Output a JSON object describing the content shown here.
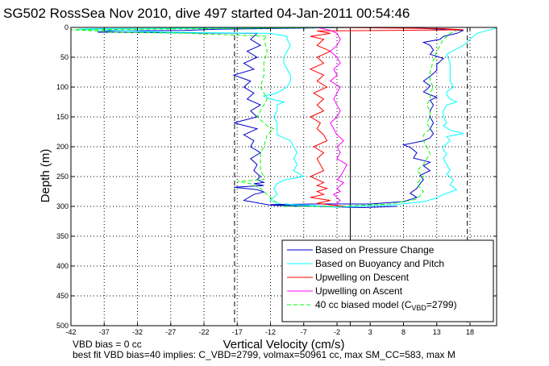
{
  "chart_data": {
    "type": "line",
    "title": "SG502 RossSea Nov 2010, dive 497 started 04-Jan-2011 00:54:46",
    "xlabel": "Vertical Velocity (cm/s)",
    "ylabel": "Depth (m)",
    "xlim": [
      -42,
      22
    ],
    "ylim": [
      0,
      500
    ],
    "y_reversed": true,
    "grid": true,
    "xticks": [
      -42,
      -37,
      -32,
      -27,
      -22,
      -17,
      -12,
      -7,
      -2,
      3,
      8,
      13,
      18
    ],
    "xtick_labels": [
      "-42",
      "-37",
      "-32",
      "-27",
      "-22",
      "-17",
      "-12",
      "-7",
      "-2",
      "3",
      "8",
      "13",
      "18"
    ],
    "yticks": [
      0,
      50,
      100,
      150,
      200,
      250,
      300,
      350,
      400,
      450,
      500
    ],
    "ytick_labels": [
      "0",
      "50",
      "100",
      "150",
      "200",
      "250",
      "300",
      "350",
      "400",
      "450",
      "500"
    ],
    "legend": {
      "placement": "bottom-right",
      "entries": [
        {
          "label": "Based on Pressure Change",
          "color": "#0000cc",
          "style": "solid"
        },
        {
          "label": "Based on Buoyancy and Pitch",
          "color": "#00ffff",
          "style": "solid"
        },
        {
          "label": "Upwelling on Descent",
          "color": "#ff0000",
          "style": "solid"
        },
        {
          "label": "Upwelling on Ascent",
          "color": "#ff00ff",
          "style": "solid"
        },
        {
          "label": "40 cc biased model (C",
          "label_sub": "VBD",
          "label_tail": "=2799)",
          "color": "#00ff00",
          "style": "dashed"
        }
      ]
    },
    "reference_lines": [
      {
        "x": 0,
        "style": "solid",
        "color": "#000000"
      },
      {
        "x": -17.4,
        "style": "dashed",
        "color": "#000000"
      },
      {
        "x": 17.6,
        "style": "dashed",
        "color": "#000000"
      }
    ],
    "series": [
      {
        "name": "Based on Pressure Change (descent)",
        "color": "#0000cc",
        "style": "solid",
        "x": [
          0,
          -20,
          -25,
          -36,
          -38,
          -14,
          -15,
          -13.5,
          -15.5,
          -14,
          -16,
          -14.5,
          -17.5,
          -15,
          -16,
          -14.5,
          -15.5,
          -13.5,
          -15,
          -14,
          -17.5,
          -14,
          -16,
          -14.5,
          -15,
          -13.5,
          -15,
          -14,
          -14.5,
          -13.5,
          -14,
          -13,
          -14.5,
          -13,
          -17.5,
          -14,
          -13,
          -14.5,
          -16,
          -12,
          -8
        ],
        "y": [
          0,
          3,
          5,
          6,
          8,
          10,
          20,
          30,
          40,
          50,
          60,
          70,
          80,
          90,
          100,
          110,
          120,
          130,
          140,
          150,
          160,
          170,
          180,
          190,
          200,
          210,
          220,
          230,
          240,
          250,
          255,
          260,
          262,
          265,
          268,
          272,
          276,
          280,
          290,
          298,
          300
        ]
      },
      {
        "name": "Based on Buoyancy and Pitch (descent)",
        "color": "#00ffff",
        "style": "solid",
        "x": [
          0,
          -38,
          -41,
          -28,
          -12,
          -9.5,
          -9.5,
          -9,
          -9.5,
          -10,
          -10,
          -9.5,
          -9,
          -9,
          -9.5,
          -11,
          -13,
          -12,
          -10,
          -11,
          -11,
          -11.5,
          -11,
          -11,
          -11,
          -9,
          -8.5,
          -8,
          -8.5,
          -8,
          -8.5,
          -7,
          -10,
          -11,
          -11.5,
          -11,
          -12,
          -10,
          -6
        ],
        "y": [
          0,
          2,
          3,
          8,
          10,
          15,
          20,
          30,
          40,
          50,
          60,
          70,
          80,
          90,
          100,
          110,
          115,
          120,
          125,
          130,
          140,
          150,
          160,
          170,
          180,
          190,
          200,
          210,
          220,
          230,
          240,
          250,
          256,
          262,
          270,
          280,
          290,
          298,
          300
        ]
      },
      {
        "name": "40 cc biased model (descent)",
        "color": "#00ff00",
        "style": "dashed",
        "x": [
          0,
          -42,
          -38,
          -36,
          -24,
          -12.5,
          -13,
          -12.5,
          -13,
          -13,
          -13.5,
          -13,
          -12.5,
          -13,
          -13.5,
          -14,
          -13,
          -12.5,
          -11.5,
          -12.5,
          -13,
          -13.5,
          -13.5,
          -13.5,
          -13,
          -13,
          -17,
          -15,
          -13.5,
          -12.5,
          -11,
          -10
        ],
        "y": [
          0,
          4,
          6,
          8,
          10,
          15,
          20,
          40,
          60,
          80,
          100,
          110,
          120,
          130,
          140,
          150,
          160,
          165,
          170,
          180,
          200,
          210,
          220,
          240,
          250,
          255,
          258,
          262,
          270,
          280,
          295,
          300
        ]
      },
      {
        "name": "Based on Pressure Change (ascent)",
        "color": "#0000cc",
        "style": "solid",
        "x": [
          7,
          2,
          -2,
          -8,
          -12,
          -5,
          3,
          8,
          10,
          9,
          10,
          10.5,
          11,
          10.5,
          12,
          11,
          12,
          9.5,
          10,
          9,
          8,
          11,
          12,
          12.5,
          12,
          12.5,
          12,
          12,
          12.5,
          12,
          13,
          12,
          11,
          11.5,
          12,
          11,
          12,
          13,
          13,
          14,
          12,
          12.5,
          12,
          11,
          13.5,
          14,
          16,
          17,
          8
        ],
        "y": [
          300,
          302,
          301,
          299,
          297,
          296,
          296,
          292,
          285,
          278,
          270,
          262,
          255,
          248,
          240,
          232,
          226,
          219,
          210,
          201,
          197,
          190,
          185,
          178,
          170,
          160,
          150,
          140,
          130,
          122,
          117,
          113,
          108,
          104,
          98,
          90,
          82,
          72,
          62,
          52,
          45,
          38,
          30,
          25,
          20,
          15,
          10,
          5,
          0
        ]
      },
      {
        "name": "Based on Buoyancy and Pitch (ascent)",
        "color": "#00ffff",
        "style": "solid",
        "x": [
          -10,
          -2,
          6,
          11,
          13,
          14,
          16,
          15,
          15.5,
          14.5,
          15,
          14.5,
          14,
          14.5,
          14,
          14,
          14.5,
          15,
          14.5,
          17,
          15,
          14,
          14.5,
          14,
          14,
          14.5,
          16,
          15,
          14.5,
          14.5,
          15.5,
          15,
          15,
          15,
          14.5,
          17,
          19,
          22
        ],
        "y": [
          296,
          301,
          298,
          292,
          286,
          280,
          272,
          264,
          256,
          246,
          240,
          230,
          220,
          212,
          206,
          200,
          195,
          190,
          183,
          178,
          172,
          165,
          160,
          150,
          140,
          130,
          125,
          120,
          113,
          108,
          100,
          90,
          80,
          60,
          45,
          30,
          10,
          1
        ]
      },
      {
        "name": "40 cc biased model (ascent)",
        "color": "#00ff00",
        "style": "dashed",
        "x": [
          -10,
          -2,
          6,
          10,
          11,
          10,
          11,
          10,
          11,
          11.5,
          12,
          11.5,
          11,
          11,
          12,
          11.5,
          12,
          12,
          11.5,
          12,
          12,
          12.5,
          12,
          12,
          12.5,
          13,
          14,
          15,
          16
        ],
        "y": [
          300,
          300,
          296,
          288,
          275,
          262,
          250,
          240,
          230,
          220,
          212,
          200,
          190,
          180,
          170,
          160,
          150,
          140,
          130,
          120,
          110,
          100,
          90,
          75,
          55,
          40,
          20,
          10,
          5
        ]
      },
      {
        "name": "Upwelling on Descent",
        "color": "#ff0000",
        "style": "solid",
        "x": [
          -3,
          14,
          17,
          -5,
          -3,
          -6,
          -4,
          -5,
          -3,
          -5,
          -4,
          -6,
          -4,
          -5,
          -3.5,
          -5.5,
          -4,
          -5,
          -4,
          -6,
          -4.5,
          -5,
          -4,
          -3.5,
          -5.5,
          -4,
          -5,
          -4.5,
          -4,
          -6,
          -5,
          -4,
          -5,
          -3.5,
          -5,
          -4,
          -6,
          -3,
          -5,
          -1
        ],
        "y": [
          0,
          2,
          4,
          6,
          10,
          15,
          20,
          30,
          40,
          50,
          60,
          70,
          80,
          90,
          100,
          110,
          120,
          130,
          140,
          150,
          160,
          170,
          180,
          190,
          200,
          210,
          220,
          230,
          240,
          250,
          255,
          260,
          265,
          270,
          275,
          280,
          285,
          290,
          295,
          300
        ]
      },
      {
        "name": "Upwelling on Ascent",
        "color": "#ff00ff",
        "style": "solid",
        "x": [
          -5,
          -3,
          -2,
          -1.5,
          -2,
          -3,
          -2,
          -1.5,
          -2.5,
          -2,
          -3,
          -1.5,
          -2,
          -2.5,
          -2,
          -1.5,
          -2,
          -3,
          -2.5,
          -2,
          -1,
          -2,
          -1.5,
          -2,
          -0.5,
          -1,
          -1.5,
          -2,
          -1,
          -2,
          -1.5,
          -2.5,
          -1.5,
          -2,
          -2.5
        ],
        "y": [
          0,
          5,
          10,
          20,
          30,
          40,
          50,
          60,
          70,
          80,
          90,
          100,
          110,
          120,
          130,
          140,
          150,
          160,
          170,
          180,
          190,
          200,
          210,
          220,
          230,
          240,
          250,
          255,
          260,
          270,
          275,
          280,
          290,
          295,
          300
        ]
      }
    ]
  },
  "annotations": {
    "vbd_bias": "VBD bias = 0 cc",
    "best_fit": "best fit VBD bias=40 implies: C_VBD=2799, volmax=50961 cc, max SM_CC=583, max M"
  }
}
